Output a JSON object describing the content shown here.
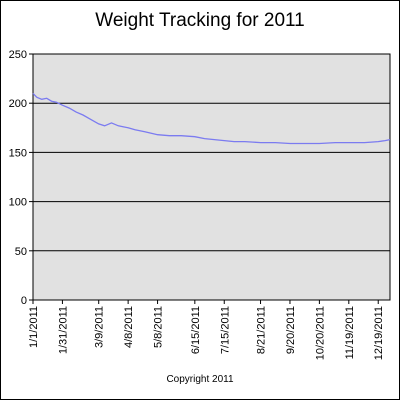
{
  "chart_data": {
    "type": "line",
    "title": "Weight Tracking for 2011",
    "footer": "Copyright 2011",
    "xlabel": "",
    "ylabel": "",
    "ylim": [
      0,
      250
    ],
    "y_ticks": [
      0,
      50,
      100,
      150,
      200,
      250
    ],
    "x_range": [
      "2011-01-01",
      "2011-12-31"
    ],
    "x_tick_labels": [
      "1/1/2011",
      "1/31/2011",
      "3/9/2011",
      "4/8/2011",
      "5/8/2011",
      "6/15/2011",
      "7/15/2011",
      "8/21/2011",
      "9/20/2011",
      "10/20/2011",
      "11/19/2011",
      "12/19/2011"
    ],
    "grid": "horizontal",
    "plot_background": "#e1e1e1",
    "line_color": "#7b7bf0",
    "series": [
      {
        "x": [
          "2011-01-01",
          "2011-01-05",
          "2011-01-10",
          "2011-01-15",
          "2011-01-20",
          "2011-01-25",
          "2011-01-31",
          "2011-02-07",
          "2011-02-14",
          "2011-02-21",
          "2011-02-28",
          "2011-03-09",
          "2011-03-15",
          "2011-03-22",
          "2011-03-29",
          "2011-04-08",
          "2011-04-15",
          "2011-04-25",
          "2011-05-08",
          "2011-05-20",
          "2011-06-01",
          "2011-06-15",
          "2011-06-25",
          "2011-07-05",
          "2011-07-15",
          "2011-07-25",
          "2011-08-05",
          "2011-08-21",
          "2011-09-05",
          "2011-09-20",
          "2011-10-05",
          "2011-10-20",
          "2011-11-05",
          "2011-11-19",
          "2011-12-05",
          "2011-12-19",
          "2011-12-26",
          "2011-12-31"
        ],
        "y": [
          210,
          206,
          204,
          205,
          202,
          201,
          198,
          195,
          191,
          188,
          184,
          179,
          177,
          180,
          177,
          175,
          173,
          171,
          168,
          167,
          167,
          166,
          164,
          163,
          162,
          161,
          161,
          160,
          160,
          159,
          159,
          159,
          160,
          160,
          160,
          161,
          162,
          163
        ]
      }
    ]
  }
}
